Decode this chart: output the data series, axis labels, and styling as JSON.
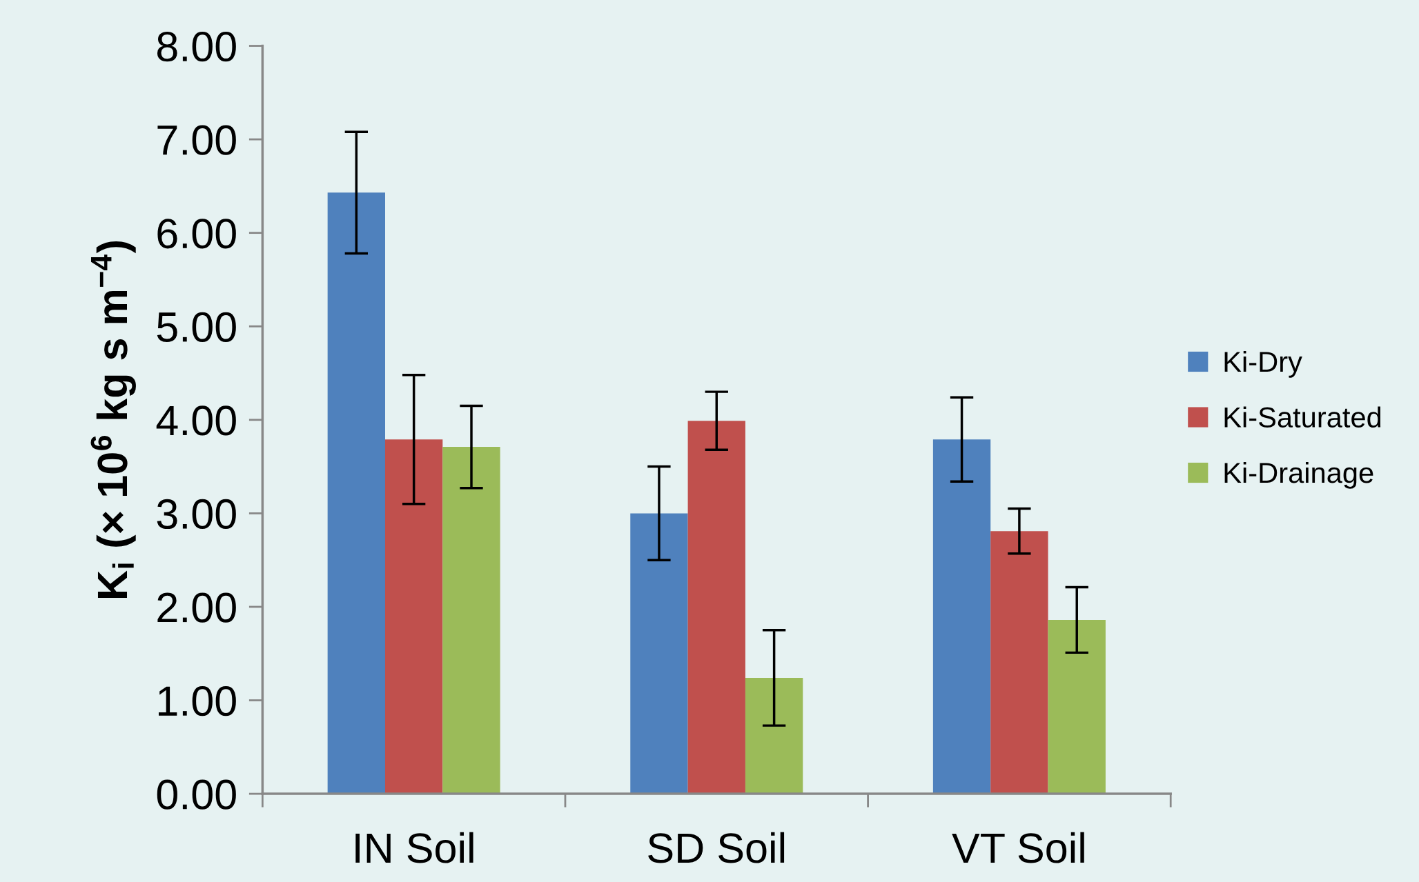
{
  "chart_data": {
    "type": "bar",
    "ylabel": "K$_{i}$ (× 10$^{6}$ kg s m$^{−4}$)",
    "categories": [
      "IN Soil",
      "SD Soil",
      "VT Soil"
    ],
    "series": [
      {
        "name": "Ki-Dry",
        "color": "#4f81bd",
        "values": [
          6.43,
          3.0,
          3.79
        ],
        "errors": [
          0.65,
          0.5,
          0.45
        ]
      },
      {
        "name": "Ki-Saturated",
        "color": "#c0504d",
        "values": [
          3.79,
          3.99,
          2.81
        ],
        "errors": [
          0.69,
          0.31,
          0.24
        ]
      },
      {
        "name": "Ki-Drainage",
        "color": "#9bbb59",
        "values": [
          3.71,
          1.24,
          1.86
        ],
        "errors": [
          0.44,
          0.51,
          0.35
        ]
      }
    ],
    "ylim": [
      0,
      8
    ],
    "yticks": [
      {
        "value": 0,
        "label": "0.00"
      },
      {
        "value": 1,
        "label": "1.00"
      },
      {
        "value": 2,
        "label": "2.00"
      },
      {
        "value": 3,
        "label": "3.00"
      },
      {
        "value": 4,
        "label": "4.00"
      },
      {
        "value": 5,
        "label": "5.00"
      },
      {
        "value": 6,
        "label": "6.00"
      },
      {
        "value": 7,
        "label": "7.00"
      },
      {
        "value": 8,
        "label": "8.00"
      }
    ],
    "grid": false,
    "legend": "right"
  }
}
